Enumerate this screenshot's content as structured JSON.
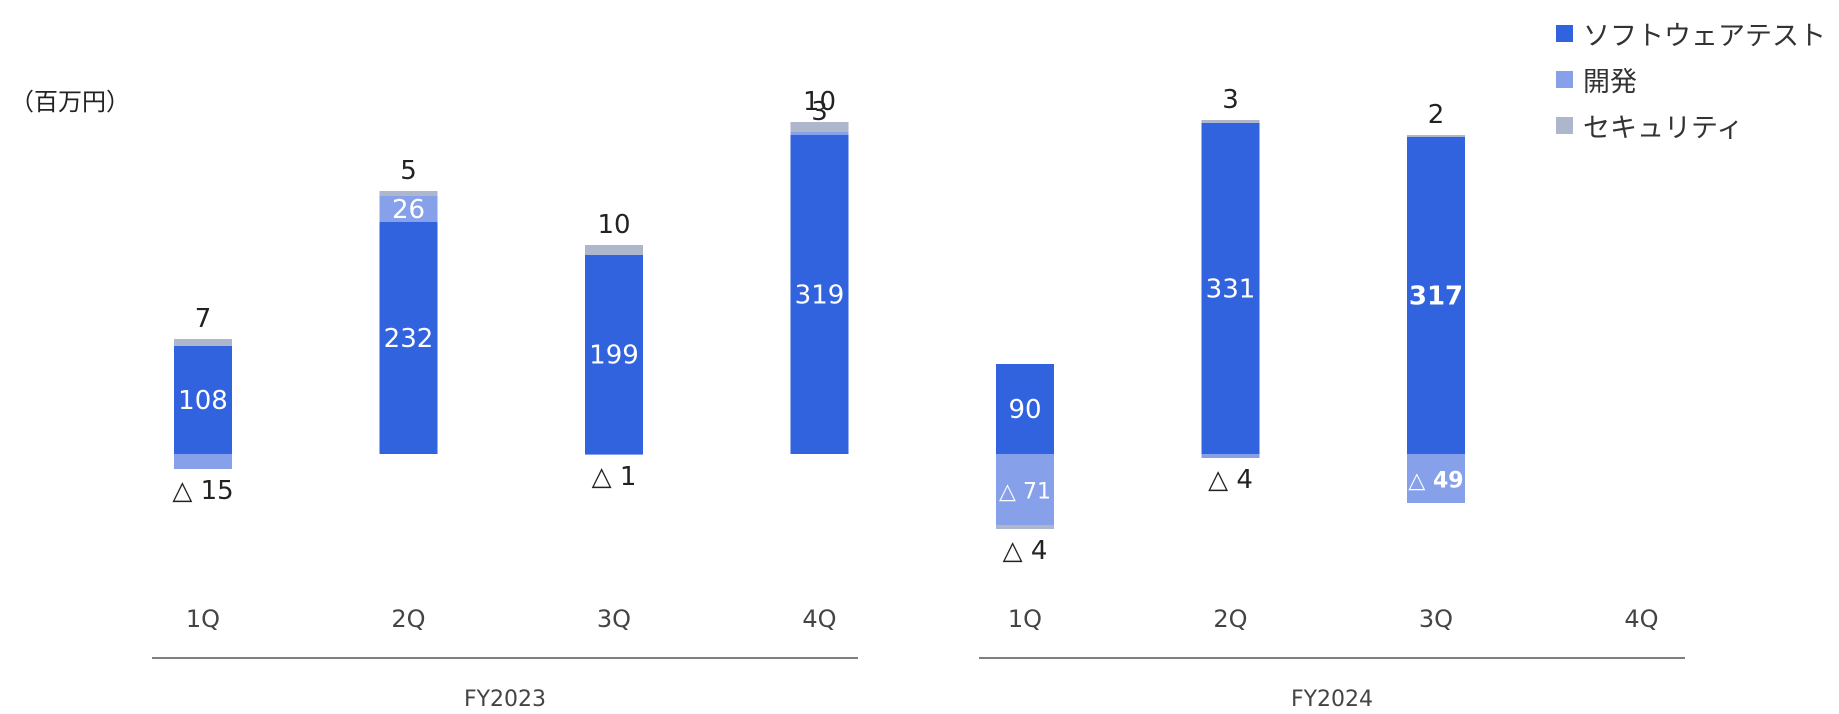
{
  "unit_label": "（百万円）",
  "chart_data": {
    "type": "bar",
    "stacked": true,
    "negative_prefix": "△",
    "groups": [
      {
        "name": "FY2023",
        "categories": [
          "1Q",
          "2Q",
          "3Q",
          "4Q"
        ]
      },
      {
        "name": "FY2024",
        "categories": [
          "1Q",
          "2Q",
          "3Q",
          "4Q"
        ]
      }
    ],
    "series": [
      {
        "name": "ソフトウェアテスト",
        "color": "#3263DE",
        "values": [
          108,
          232,
          199,
          319,
          90,
          331,
          317,
          null
        ]
      },
      {
        "name": "開発",
        "color": "#87A0EA",
        "values": [
          -15,
          26,
          -1,
          3,
          -71,
          -4,
          -49,
          null
        ]
      },
      {
        "name": "セキュリティ",
        "color": "#AEB6CC",
        "values": [
          7,
          5,
          10,
          10,
          -4,
          3,
          2,
          null
        ]
      }
    ],
    "bold_labels": [
      6
    ],
    "legend_position": "top-right",
    "grid": false
  }
}
